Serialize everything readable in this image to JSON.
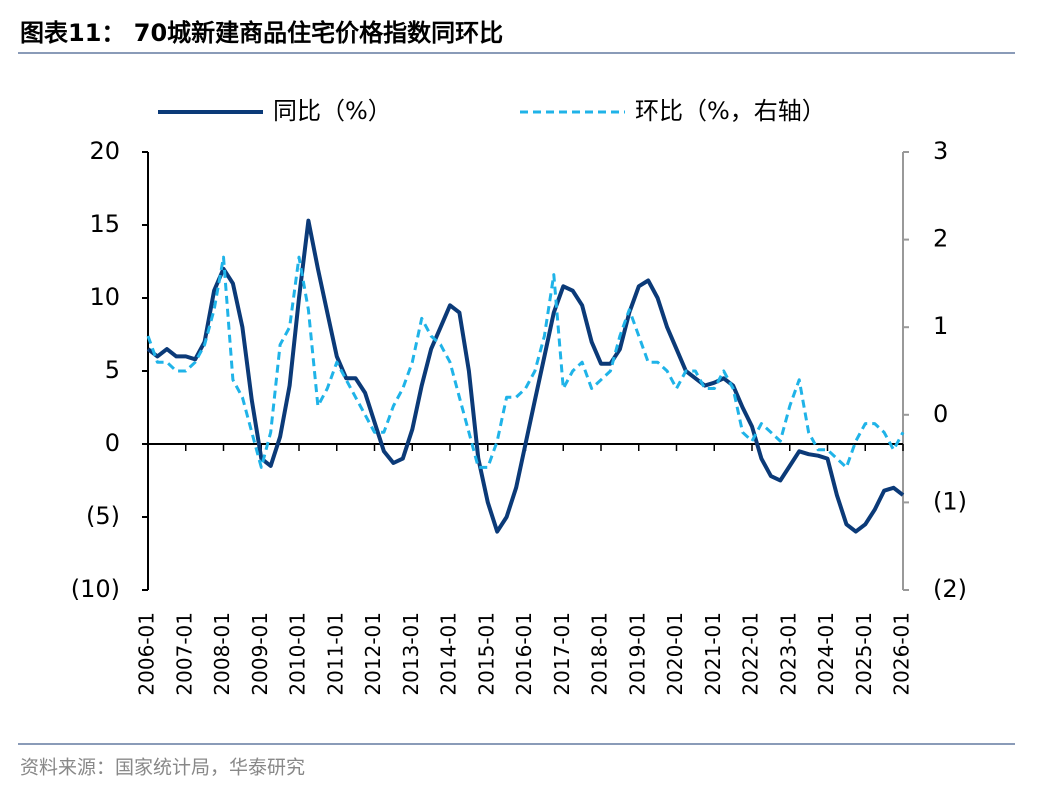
{
  "header": {
    "title": "图表11：  70城新建商品住宅价格指数同环比"
  },
  "footer": {
    "source": "资料来源：国家统计局，华泰研究"
  },
  "chart_data": {
    "type": "line",
    "x": [
      "2006-01",
      "2006-04",
      "2006-07",
      "2006-10",
      "2007-01",
      "2007-04",
      "2007-07",
      "2007-10",
      "2008-01",
      "2008-04",
      "2008-07",
      "2008-10",
      "2009-01",
      "2009-04",
      "2009-07",
      "2009-10",
      "2010-01",
      "2010-04",
      "2010-07",
      "2010-10",
      "2011-01",
      "2011-04",
      "2011-07",
      "2011-10",
      "2012-01",
      "2012-04",
      "2012-07",
      "2012-10",
      "2013-01",
      "2013-04",
      "2013-07",
      "2013-10",
      "2014-01",
      "2014-04",
      "2014-07",
      "2014-10",
      "2015-01",
      "2015-04",
      "2015-07",
      "2015-10",
      "2016-01",
      "2016-04",
      "2016-07",
      "2016-10",
      "2017-01",
      "2017-04",
      "2017-07",
      "2017-10",
      "2018-01",
      "2018-04",
      "2018-07",
      "2018-10",
      "2019-01",
      "2019-04",
      "2019-07",
      "2019-10",
      "2020-01",
      "2020-04",
      "2020-07",
      "2020-10",
      "2021-01",
      "2021-04",
      "2021-07",
      "2021-10",
      "2022-01",
      "2022-04",
      "2022-07",
      "2022-10",
      "2023-01",
      "2023-04",
      "2023-07",
      "2023-10",
      "2024-01",
      "2024-04",
      "2024-07",
      "2024-10",
      "2025-01",
      "2025-04",
      "2025-07",
      "2025-10",
      "2026-01"
    ],
    "series": [
      {
        "name": "同比（%）",
        "color": "#0b3a78",
        "dash": false,
        "values": [
          6.5,
          6,
          6.5,
          6,
          6,
          5.8,
          7,
          10.5,
          12,
          11,
          8,
          3,
          -1,
          -1.5,
          0.5,
          4,
          10,
          15.3,
          12,
          9,
          6,
          4.5,
          4.5,
          3.5,
          1.5,
          -0.5,
          -1.3,
          -1,
          1,
          4,
          6.5,
          8,
          9.5,
          9,
          5,
          -1,
          -4,
          -6,
          -5,
          -3,
          0,
          3,
          6,
          9,
          10.8,
          10.5,
          9.5,
          7,
          5.5,
          5.5,
          6.5,
          9,
          10.8,
          11.2,
          10,
          8,
          6.5,
          5,
          4.5,
          4,
          4.2,
          4.5,
          4,
          2.5,
          1.2,
          -1,
          -2.2,
          -2.5,
          -1.5,
          -0.5,
          -0.7,
          -0.8,
          -1,
          -3.5,
          -5.5,
          -6,
          -5.5,
          -4.5,
          -3.2,
          -3,
          -3.5
        ]
      },
      {
        "name": "环比（%，右轴）",
        "color": "#1fb3e8",
        "dash": true,
        "axis": "y2",
        "values": [
          0.9,
          0.6,
          0.6,
          0.5,
          0.5,
          0.6,
          0.8,
          1.2,
          1.8,
          0.4,
          0.2,
          -0.2,
          -0.6,
          -0.2,
          0.8,
          1.0,
          1.8,
          1.2,
          0.1,
          0.3,
          0.6,
          0.4,
          0.2,
          0,
          -0.2,
          -0.2,
          0.1,
          0.3,
          0.6,
          1.1,
          0.9,
          0.8,
          0.6,
          0.2,
          -0.2,
          -0.6,
          -0.6,
          -0.3,
          0.2,
          0.2,
          0.3,
          0.5,
          0.9,
          1.6,
          0.3,
          0.5,
          0.6,
          0.3,
          0.4,
          0.5,
          0.9,
          1.2,
          0.9,
          0.6,
          0.6,
          0.5,
          0.3,
          0.5,
          0.5,
          0.3,
          0.3,
          0.5,
          0.3,
          -0.2,
          -0.3,
          -0.1,
          -0.2,
          -0.3,
          0.1,
          0.4,
          -0.2,
          -0.4,
          -0.4,
          -0.5,
          -0.6,
          -0.3,
          -0.1,
          -0.1,
          -0.2,
          -0.4,
          -0.2
        ]
      }
    ],
    "ylim": [
      -10,
      20
    ],
    "yticks": [
      {
        "value": -10,
        "label": "(10)"
      },
      {
        "value": -5,
        "label": "(5)"
      },
      0,
      5,
      10,
      15,
      20
    ],
    "y2lim": [
      -2,
      3
    ],
    "y2ticks": [
      {
        "value": -2,
        "label": "(2)"
      },
      {
        "value": -1,
        "label": "(1)"
      },
      0,
      1,
      2,
      3
    ],
    "legend": "top"
  }
}
